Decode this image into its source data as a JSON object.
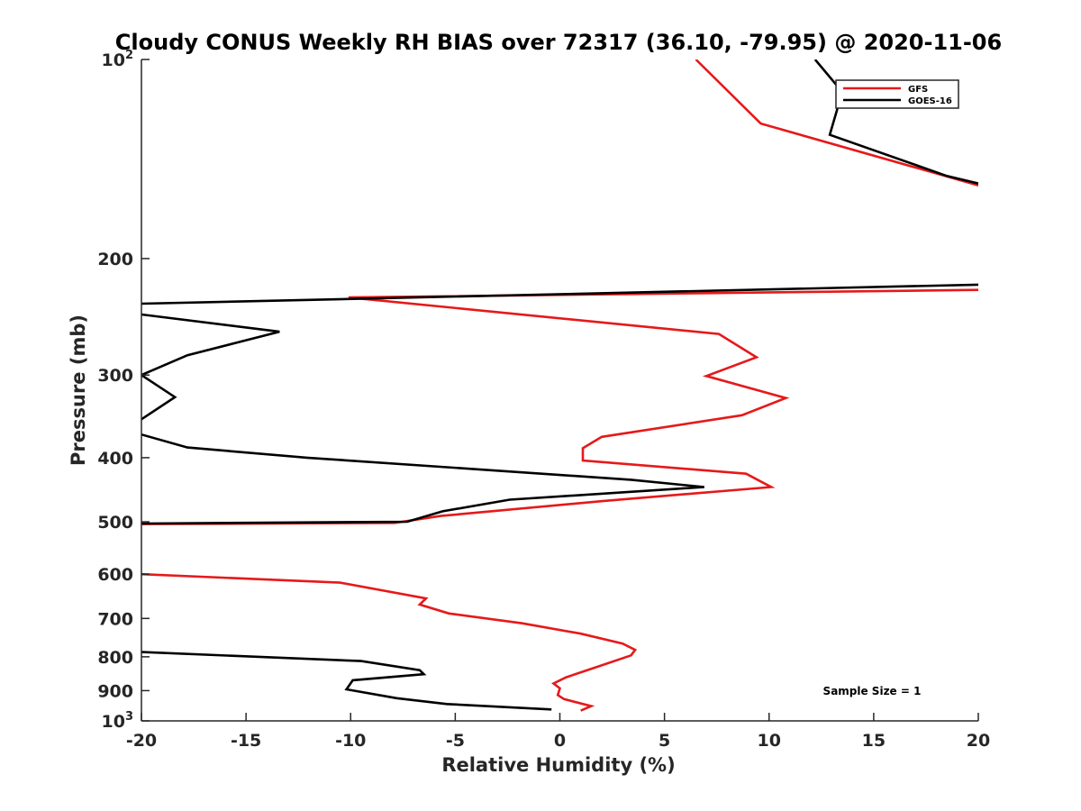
{
  "chart_data": {
    "type": "line",
    "title": "Cloudy CONUS Weekly RH BIAS over 72317 (36.10, -79.95) @ 2020-11-06",
    "xlabel": "Relative Humidity (%)",
    "ylabel": "Pressure (mb)",
    "xlim": [
      -20,
      20
    ],
    "ylim": [
      100,
      1000
    ],
    "y_scale": "log",
    "y_reversed": true,
    "xticks": [
      -20,
      -15,
      -10,
      -5,
      0,
      5,
      10,
      15,
      20
    ],
    "yticks": [
      {
        "value": 100,
        "base": "10",
        "exp": "2"
      },
      {
        "value": 200,
        "label": "200"
      },
      {
        "value": 300,
        "label": "300"
      },
      {
        "value": 400,
        "label": "400"
      },
      {
        "value": 500,
        "label": "500"
      },
      {
        "value": 600,
        "label": "600"
      },
      {
        "value": 700,
        "label": "700"
      },
      {
        "value": 800,
        "label": "800"
      },
      {
        "value": 900,
        "label": "900"
      },
      {
        "value": 1000,
        "base": "10",
        "exp": "3"
      }
    ],
    "grid": false,
    "legend_position": "top-right",
    "series": [
      {
        "name": "GFS",
        "color": "#e6191a",
        "segments": [
          [
            [
              6.5,
              100
            ],
            [
              9.6,
              125
            ],
            [
              20,
              155
            ]
          ],
          [
            [
              20,
              223
            ],
            [
              -10.1,
              229
            ],
            [
              7.6,
              260
            ],
            [
              9.4,
              282
            ],
            [
              7.0,
              301
            ],
            [
              10.8,
              325
            ],
            [
              8.7,
              345
            ],
            [
              2.0,
              372
            ],
            [
              1.1,
              387
            ],
            [
              1.1,
              404
            ],
            [
              8.9,
              423
            ],
            [
              10.1,
              443
            ],
            [
              2.1,
              465
            ],
            [
              -5.7,
              490
            ],
            [
              -7.9,
              502
            ],
            [
              -20,
              504
            ]
          ],
          [
            [
              -20,
              600
            ],
            [
              -10.5,
              618
            ],
            [
              -6.4,
              653
            ],
            [
              -6.7,
              667
            ],
            [
              -5.3,
              688
            ],
            [
              -1.8,
              712
            ],
            [
              1.0,
              738
            ],
            [
              3.0,
              764
            ],
            [
              3.6,
              781
            ],
            [
              3.4,
              796
            ],
            [
              1.9,
              826
            ],
            [
              0.3,
              859
            ],
            [
              -0.3,
              878
            ],
            [
              0,
              893
            ],
            [
              -0.1,
              914
            ],
            [
              0.2,
              927
            ],
            [
              1.5,
              950
            ],
            [
              1.0,
              965
            ]
          ]
        ]
      },
      {
        "name": "GOES-16",
        "color": "#000000",
        "segments": [
          [
            [
              12.2,
              100
            ],
            [
              13.5,
              112
            ],
            [
              12.9,
              130
            ],
            [
              18.5,
              150
            ],
            [
              20,
              154
            ]
          ],
          [
            [
              20,
              219
            ],
            [
              -20,
              234
            ]
          ],
          [
            [
              -20,
              243
            ],
            [
              -13.4,
              258
            ],
            [
              -17.8,
              280
            ],
            [
              -20,
              300
            ],
            [
              -18.4,
              324
            ],
            [
              -20,
              350
            ]
          ],
          [
            [
              -20,
              369
            ],
            [
              -17.8,
              386
            ],
            [
              -12.1,
              400
            ],
            [
              3.4,
              432
            ],
            [
              6.9,
              443
            ],
            [
              -2.4,
              463
            ],
            [
              -5.6,
              482
            ],
            [
              -7.3,
              500
            ],
            [
              -20,
              503
            ]
          ],
          [
            [
              -20,
              787
            ],
            [
              -9.5,
              812
            ],
            [
              -6.7,
              838
            ],
            [
              -6.5,
              850
            ],
            [
              -9.9,
              868
            ],
            [
              -10.2,
              896
            ],
            [
              -7.8,
              924
            ],
            [
              -5.4,
              943
            ],
            [
              -0.4,
              961
            ]
          ]
        ]
      }
    ],
    "annotation": "Sample Size = 1"
  }
}
